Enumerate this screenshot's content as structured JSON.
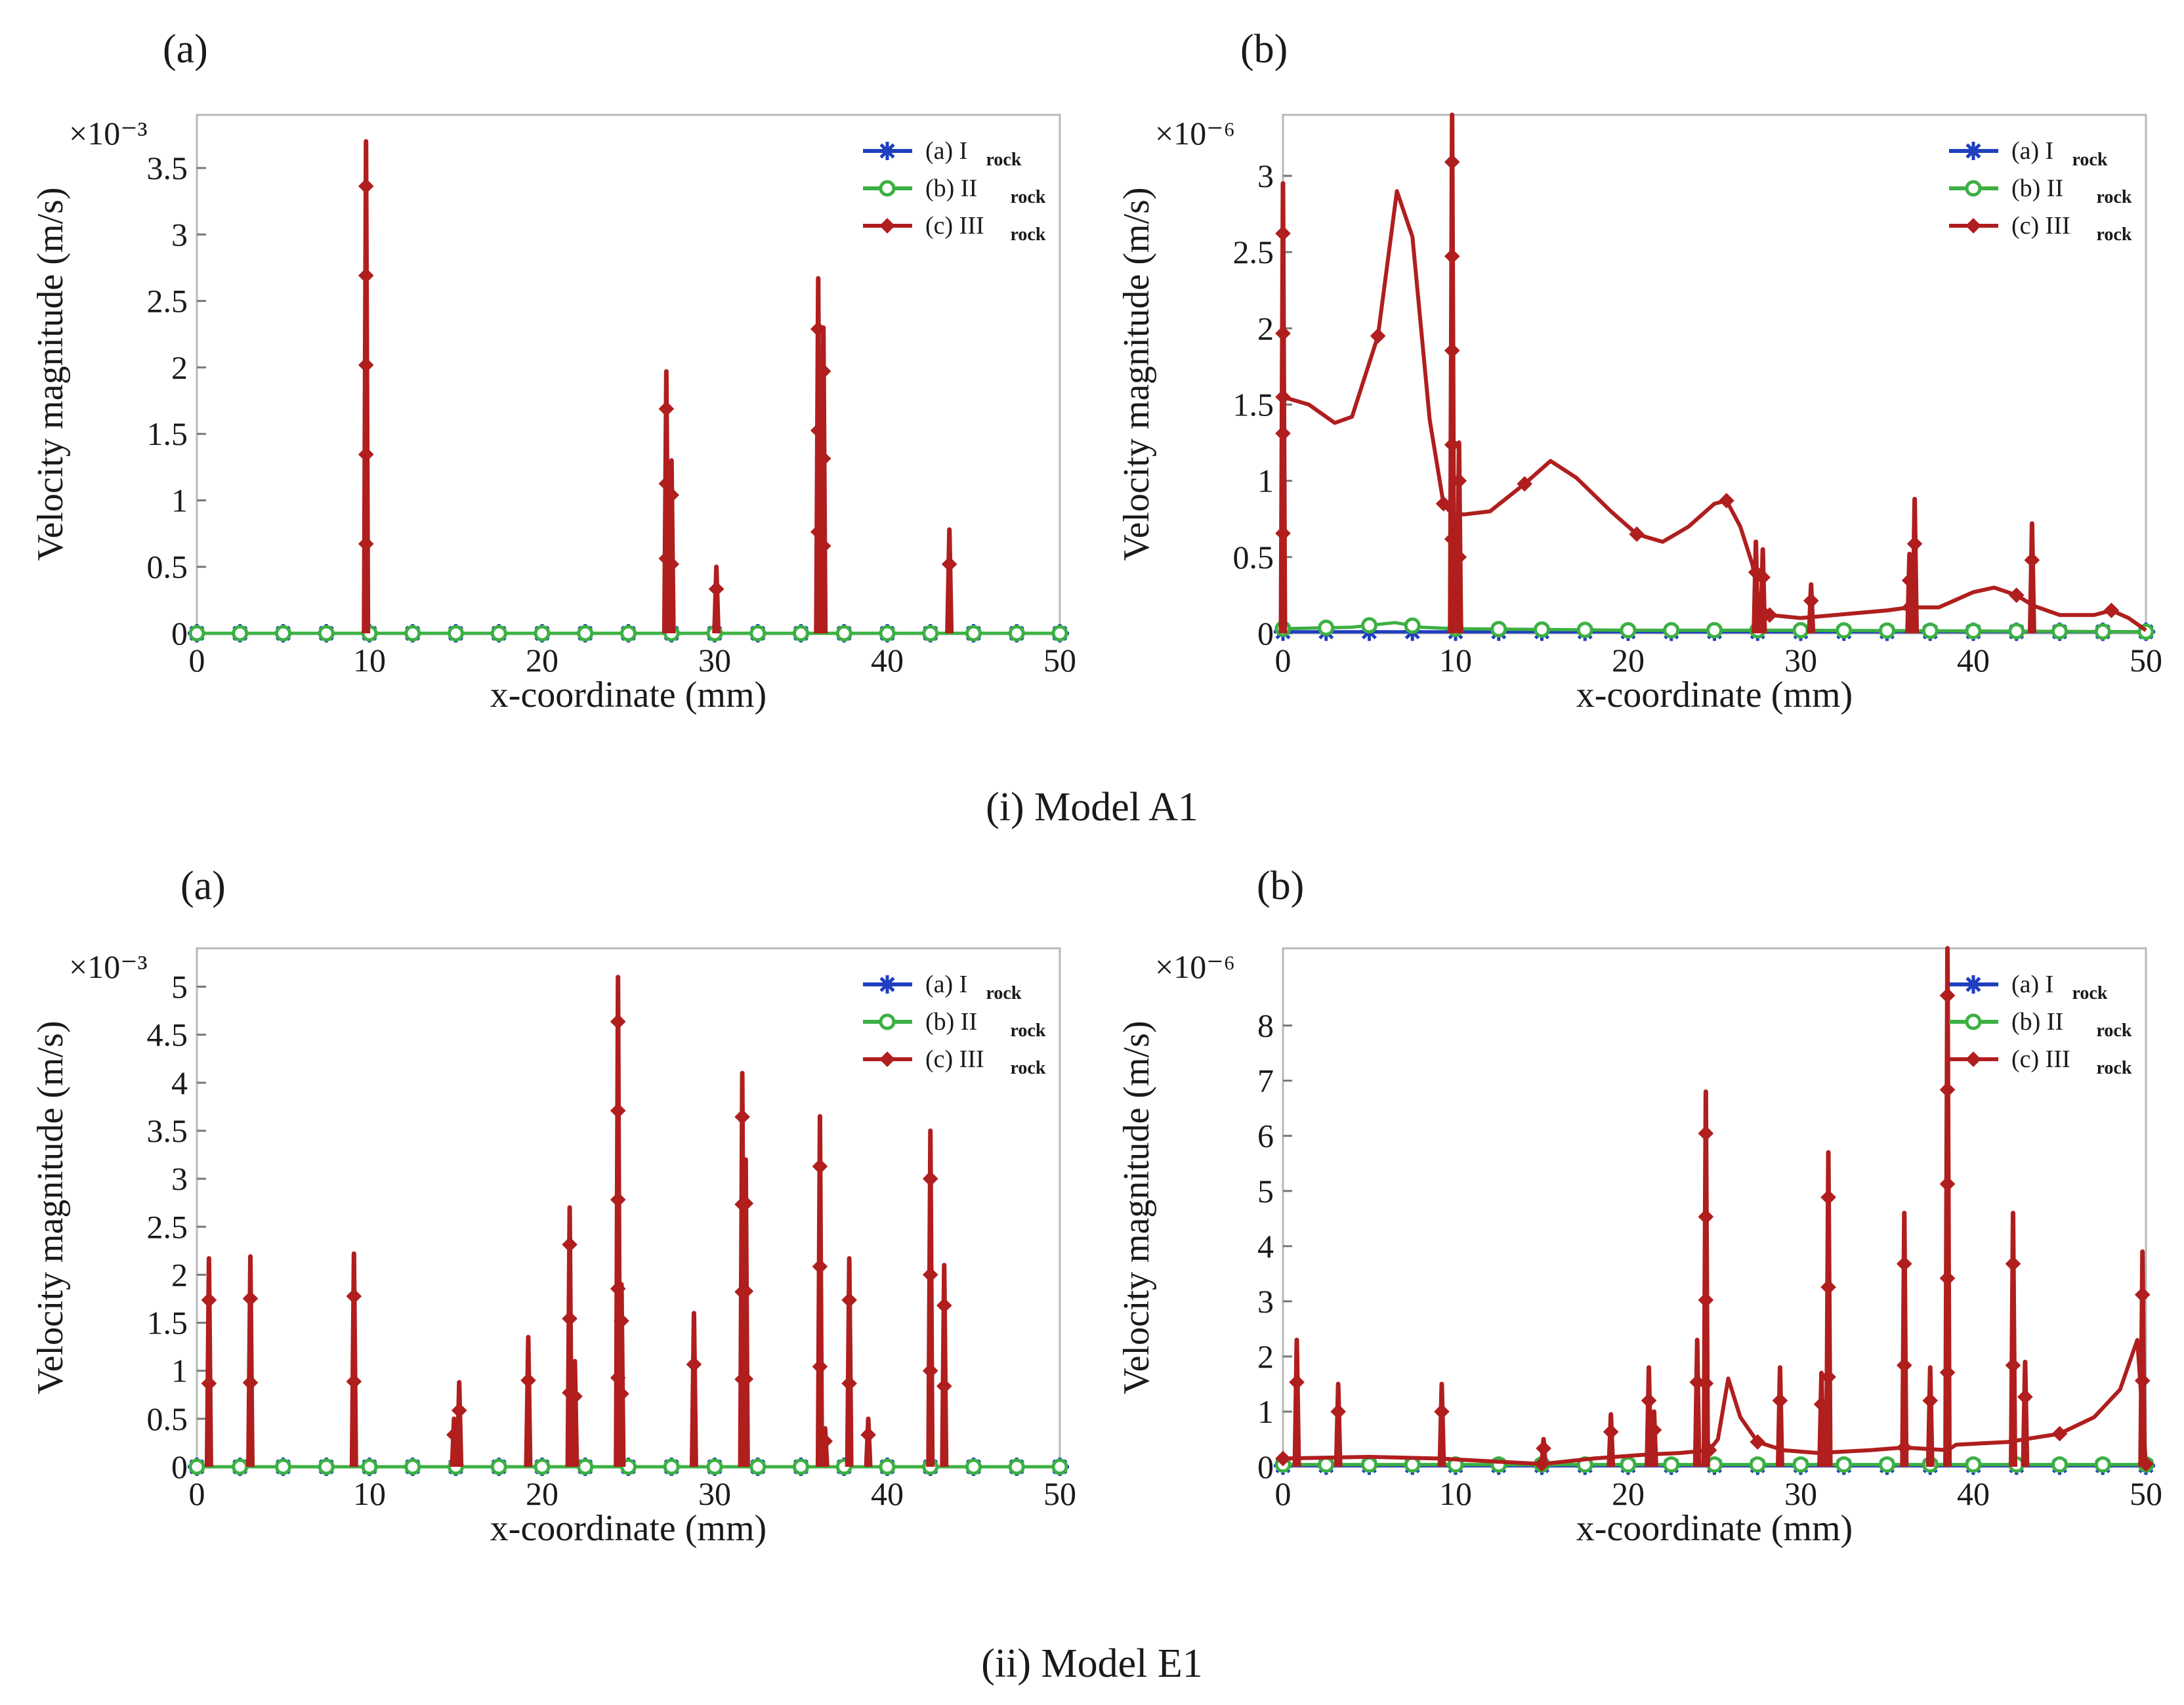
{
  "figure": {
    "caption_top": "(i) Model A1",
    "caption_bottom": "(ii) Model E1",
    "series_colors": {
      "I": "#1f3fbf",
      "II": "#3cb043",
      "III": "#b01e1e"
    },
    "legend_labels": [
      {
        "prefix": "(a) I",
        "sub": "rock",
        "marker": "star-icon"
      },
      {
        "prefix": "(b)  II",
        "sub": "rock",
        "marker": "circle-icon"
      },
      {
        "prefix": "(c) III",
        "sub": "rock",
        "marker": "diamond-icon"
      }
    ]
  },
  "chart_data": [
    {
      "id": "A1a",
      "panel": "(a)",
      "type": "line",
      "xlabel": "x-coordinate (mm)",
      "ylabel": "Velocity magnitude (m/s)",
      "scale_label": "×10⁻³",
      "xlim": [
        0,
        50
      ],
      "ylim": [
        0,
        3.9
      ],
      "xticks": [
        "0",
        "10",
        "20",
        "30",
        "40",
        "50"
      ],
      "xtick_values": [
        0,
        10,
        20,
        30,
        40,
        50
      ],
      "yticks": [
        "0",
        "0.5",
        "1",
        "1.5",
        "2",
        "2.5",
        "3",
        "3.5"
      ],
      "ytick_values": [
        0,
        0.5,
        1,
        1.5,
        2,
        2.5,
        3,
        3.5
      ],
      "series": [
        {
          "name": "I_rock",
          "values_note": "near zero",
          "points": [
            [
              0,
              0.0
            ],
            [
              50,
              0.0
            ]
          ]
        },
        {
          "name": "II_rock",
          "points": [
            [
              0,
              0.0
            ],
            [
              50,
              0.0
            ]
          ]
        },
        {
          "name": "III_rock",
          "spikes": [
            [
              9.8,
              3.7
            ],
            [
              27.2,
              1.97
            ],
            [
              27.5,
              1.3
            ],
            [
              30.1,
              0.5
            ],
            [
              36.0,
              2.67
            ],
            [
              36.3,
              2.3
            ],
            [
              43.6,
              0.78
            ]
          ]
        }
      ]
    },
    {
      "id": "A1b",
      "panel": "(b)",
      "type": "line",
      "xlabel": "x-coordinate (mm)",
      "ylabel": "Velocity magnitude (m/s)",
      "scale_label": "×10⁻⁶",
      "xlim": [
        0,
        50
      ],
      "ylim": [
        0,
        3.4
      ],
      "xticks": [
        "0",
        "10",
        "20",
        "30",
        "40",
        "50"
      ],
      "xtick_values": [
        0,
        10,
        20,
        30,
        40,
        50
      ],
      "yticks": [
        "0",
        "0.5",
        "1",
        "1.5",
        "2",
        "2.5",
        "3"
      ],
      "ytick_values": [
        0,
        0.5,
        1,
        1.5,
        2,
        2.5,
        3
      ],
      "series": [
        {
          "name": "I_rock",
          "points": [
            [
              0,
              0.01
            ],
            [
              10,
              0.01
            ],
            [
              20,
              0.01
            ],
            [
              30,
              0.01
            ],
            [
              50,
              0.01
            ]
          ]
        },
        {
          "name": "II_rock",
          "points": [
            [
              0,
              0.03
            ],
            [
              4,
              0.04
            ],
            [
              6.5,
              0.07
            ],
            [
              8,
              0.04
            ],
            [
              10,
              0.03
            ],
            [
              20,
              0.02
            ],
            [
              30,
              0.02
            ],
            [
              50,
              0.01
            ]
          ]
        },
        {
          "name": "III_rock",
          "points": [
            [
              0,
              1.55
            ],
            [
              1.5,
              1.5
            ],
            [
              3,
              1.38
            ],
            [
              4,
              1.42
            ],
            [
              5.5,
              1.95
            ],
            [
              6.6,
              2.9
            ],
            [
              7.5,
              2.6
            ],
            [
              8.5,
              1.4
            ],
            [
              9.3,
              0.85
            ],
            [
              9.8,
              0.78
            ],
            [
              10.5,
              0.78
            ],
            [
              12,
              0.8
            ],
            [
              14,
              0.98
            ],
            [
              15.5,
              1.13
            ],
            [
              17,
              1.02
            ],
            [
              19,
              0.8
            ],
            [
              20.5,
              0.65
            ],
            [
              22,
              0.6
            ],
            [
              23.5,
              0.7
            ],
            [
              25,
              0.85
            ],
            [
              25.7,
              0.87
            ],
            [
              26.5,
              0.7
            ],
            [
              27.2,
              0.45
            ],
            [
              27.6,
              0.2
            ],
            [
              28.2,
              0.12
            ],
            [
              30,
              0.1
            ],
            [
              33,
              0.13
            ],
            [
              35,
              0.15
            ],
            [
              36.3,
              0.17
            ],
            [
              38,
              0.17
            ],
            [
              40,
              0.27
            ],
            [
              41.2,
              0.3
            ],
            [
              42.5,
              0.25
            ],
            [
              43.5,
              0.18
            ],
            [
              45,
              0.12
            ],
            [
              47,
              0.12
            ],
            [
              48,
              0.15
            ],
            [
              49,
              0.1
            ],
            [
              50,
              0.02
            ]
          ],
          "spikes": [
            [
              0,
              2.95
            ],
            [
              9.8,
              3.4
            ],
            [
              10.2,
              1.25
            ],
            [
              27.4,
              0.6
            ],
            [
              27.8,
              0.55
            ],
            [
              30.6,
              0.32
            ],
            [
              36.3,
              0.52
            ],
            [
              36.6,
              0.88
            ],
            [
              43.4,
              0.72
            ]
          ]
        }
      ]
    },
    {
      "id": "E1a",
      "panel": "(a)",
      "type": "line",
      "xlabel": "x-coordinate (mm)",
      "ylabel": "Velocity magnitude (m/s)",
      "scale_label": "×10⁻³",
      "xlim": [
        0,
        50
      ],
      "ylim": [
        0,
        5.4
      ],
      "xticks": [
        "0",
        "10",
        "20",
        "30",
        "40",
        "50"
      ],
      "xtick_values": [
        0,
        10,
        20,
        30,
        40,
        50
      ],
      "yticks": [
        "0",
        "0.5",
        "1",
        "1.5",
        "2",
        "2.5",
        "3",
        "3.5",
        "4",
        "4.5",
        "5"
      ],
      "ytick_values": [
        0,
        0.5,
        1,
        1.5,
        2,
        2.5,
        3,
        3.5,
        4,
        4.5,
        5
      ],
      "series": [
        {
          "name": "I_rock",
          "points": [
            [
              0,
              0.0
            ],
            [
              50,
              0.0
            ]
          ]
        },
        {
          "name": "II_rock",
          "points": [
            [
              0,
              0.0
            ],
            [
              50,
              0.0
            ]
          ]
        },
        {
          "name": "III_rock",
          "spikes": [
            [
              0.7,
              2.17
            ],
            [
              3.1,
              2.19
            ],
            [
              9.1,
              2.22
            ],
            [
              14.9,
              0.5
            ],
            [
              15.2,
              0.88
            ],
            [
              19.2,
              1.35
            ],
            [
              21.6,
              2.7
            ],
            [
              21.9,
              1.1
            ],
            [
              24.4,
              5.1
            ],
            [
              24.6,
              1.9
            ],
            [
              28.8,
              1.6
            ],
            [
              31.6,
              4.1
            ],
            [
              31.8,
              3.2
            ],
            [
              36.1,
              3.65
            ],
            [
              36.4,
              0.4
            ],
            [
              37.8,
              2.17
            ],
            [
              38.9,
              0.5
            ],
            [
              42.5,
              3.5
            ],
            [
              43.3,
              2.1
            ]
          ]
        }
      ]
    },
    {
      "id": "E1b",
      "panel": "(b)",
      "type": "line",
      "xlabel": "x-coordinate (mm)",
      "ylabel": "Velocity magnitude (m/s)",
      "scale_label": "×10⁻⁶",
      "xlim": [
        0,
        50
      ],
      "ylim": [
        0,
        9.4
      ],
      "xticks": [
        "0",
        "10",
        "20",
        "30",
        "40",
        "50"
      ],
      "xtick_values": [
        0,
        10,
        20,
        30,
        40,
        50
      ],
      "yticks": [
        "0",
        "1",
        "2",
        "3",
        "4",
        "5",
        "6",
        "7",
        "8"
      ],
      "ytick_values": [
        0,
        1,
        2,
        3,
        4,
        5,
        6,
        7,
        8
      ],
      "series": [
        {
          "name": "I_rock",
          "points": [
            [
              0,
              0.02
            ],
            [
              50,
              0.02
            ]
          ]
        },
        {
          "name": "II_rock",
          "points": [
            [
              0,
              0.04
            ],
            [
              50,
              0.04
            ]
          ]
        },
        {
          "name": "III_rock",
          "points": [
            [
              0,
              0.15
            ],
            [
              5,
              0.18
            ],
            [
              9,
              0.15
            ],
            [
              12,
              0.1
            ],
            [
              15,
              0.05
            ],
            [
              18,
              0.15
            ],
            [
              21,
              0.22
            ],
            [
              23,
              0.25
            ],
            [
              24.7,
              0.3
            ],
            [
              25.2,
              0.5
            ],
            [
              25.8,
              1.6
            ],
            [
              26.5,
              0.9
            ],
            [
              27.5,
              0.45
            ],
            [
              29,
              0.3
            ],
            [
              31,
              0.25
            ],
            [
              34,
              0.3
            ],
            [
              36,
              0.35
            ],
            [
              38.5,
              0.3
            ],
            [
              39,
              0.4
            ],
            [
              42,
              0.45
            ],
            [
              45,
              0.6
            ],
            [
              47,
              0.9
            ],
            [
              48.5,
              1.4
            ],
            [
              49.5,
              2.3
            ],
            [
              50,
              0.05
            ]
          ],
          "spikes": [
            [
              0.8,
              2.3
            ],
            [
              3.2,
              1.5
            ],
            [
              9.2,
              1.5
            ],
            [
              15.1,
              0.5
            ],
            [
              19.0,
              0.95
            ],
            [
              21.2,
              1.8
            ],
            [
              21.5,
              1.0
            ],
            [
              24.0,
              2.3
            ],
            [
              24.5,
              6.8
            ],
            [
              28.8,
              1.8
            ],
            [
              31.2,
              1.7
            ],
            [
              31.6,
              5.7
            ],
            [
              36.0,
              4.6
            ],
            [
              37.5,
              1.8
            ],
            [
              38.5,
              9.4
            ],
            [
              42.3,
              4.6
            ],
            [
              43.0,
              1.9
            ],
            [
              49.8,
              3.9
            ]
          ]
        }
      ]
    }
  ]
}
